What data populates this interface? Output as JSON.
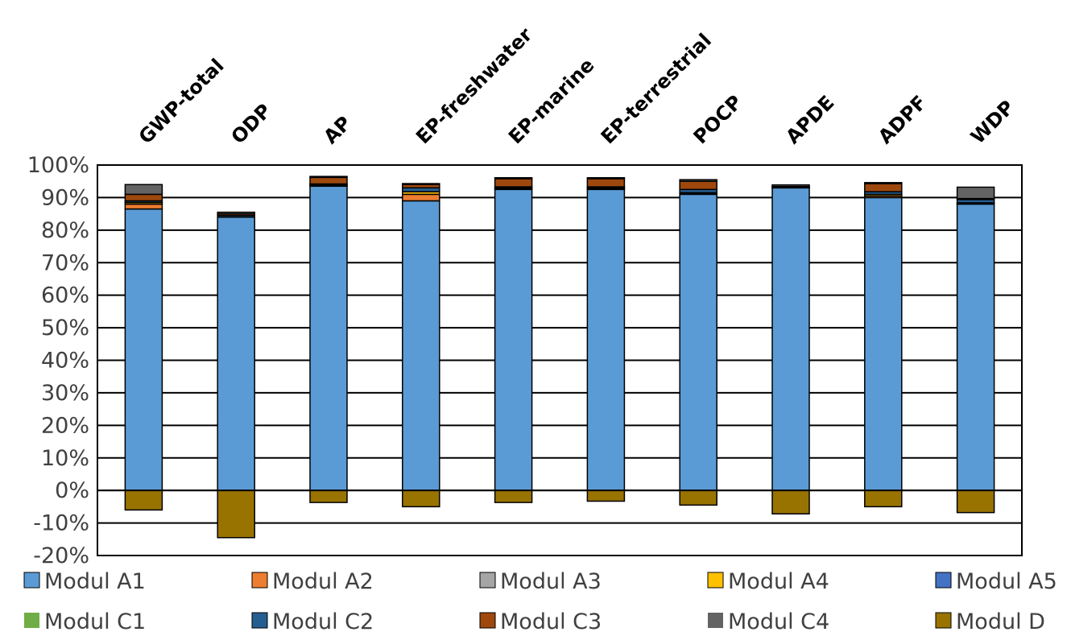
{
  "chart_data": {
    "type": "bar",
    "stacked": true,
    "title": "",
    "xlabel": "",
    "ylabel": "",
    "ylim": [
      -0.2,
      1.0
    ],
    "y_ticks": [
      -0.2,
      -0.1,
      0.0,
      0.1,
      0.2,
      0.3,
      0.4,
      0.5,
      0.6,
      0.7,
      0.8,
      0.9,
      1.0
    ],
    "y_tick_labels": [
      "-20%",
      "-10%",
      "0%",
      "10%",
      "20%",
      "30%",
      "40%",
      "50%",
      "60%",
      "70%",
      "80%",
      "90%",
      "100%"
    ],
    "grid": true,
    "legend_position": "bottom",
    "categories": [
      "GWP-total",
      "ODP",
      "AP",
      "EP-freshwater",
      "EP-marine",
      "EP-terrestrial",
      "POCP",
      "APDE",
      "ADPF",
      "WDP"
    ],
    "series": [
      {
        "name": "Modul A1",
        "color": "#5B9BD5",
        "values": [
          0.865,
          0.84,
          0.935,
          0.89,
          0.925,
          0.925,
          0.91,
          0.93,
          0.9,
          0.88
        ]
      },
      {
        "name": "Modul A2",
        "color": "#ED7D31",
        "values": [
          0.015,
          0.0,
          0.003,
          0.02,
          0.003,
          0.003,
          0.002,
          0.001,
          0.005,
          0.002
        ]
      },
      {
        "name": "Modul A3",
        "color": "#A5A5A5",
        "values": [
          0.0,
          0.0,
          0.0,
          0.0,
          0.0,
          0.0,
          0.0,
          0.0,
          0.0,
          0.0
        ]
      },
      {
        "name": "Modul A4",
        "color": "#FFC000",
        "values": [
          0.005,
          0.0,
          0.002,
          0.008,
          0.002,
          0.002,
          0.003,
          0.001,
          0.005,
          0.002
        ]
      },
      {
        "name": "Modul A5",
        "color": "#4472C4",
        "values": [
          0.0,
          0.0,
          0.0,
          0.0,
          0.0,
          0.0,
          0.0,
          0.0,
          0.0,
          0.0
        ]
      },
      {
        "name": "Modul C1",
        "color": "#70AD47",
        "values": [
          0.0,
          0.0,
          0.0,
          0.0,
          0.0,
          0.0,
          0.0,
          0.0,
          0.0,
          0.0
        ]
      },
      {
        "name": "Modul C2",
        "color": "#255E91",
        "values": [
          0.005,
          0.005,
          0.002,
          0.012,
          0.003,
          0.003,
          0.01,
          0.002,
          0.008,
          0.01
        ]
      },
      {
        "name": "Modul C3",
        "color": "#9E480E",
        "values": [
          0.02,
          0.005,
          0.02,
          0.01,
          0.025,
          0.025,
          0.025,
          0.0,
          0.025,
          0.003
        ]
      },
      {
        "name": "Modul C4",
        "color": "#636363",
        "values": [
          0.03,
          0.005,
          0.003,
          0.003,
          0.003,
          0.003,
          0.005,
          0.005,
          0.003,
          0.035
        ]
      },
      {
        "name": "Modul D",
        "color": "#997300",
        "values": [
          -0.06,
          -0.145,
          -0.037,
          -0.05,
          -0.037,
          -0.033,
          -0.045,
          -0.072,
          -0.05,
          -0.068
        ]
      }
    ]
  }
}
